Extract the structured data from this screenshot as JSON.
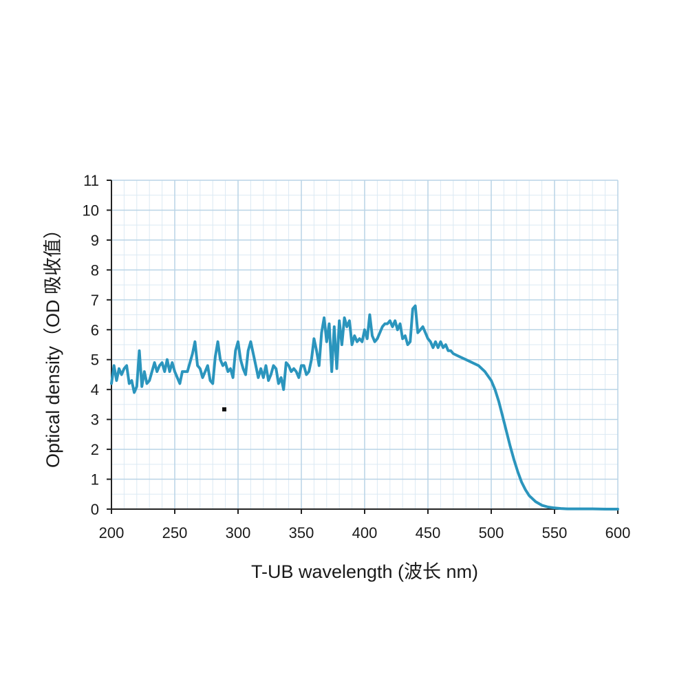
{
  "chart_data": {
    "type": "line",
    "xlabel": "T-UB wavelength (波长 nm)",
    "ylabel": "Optical density（OD 吸收值）",
    "xlim": [
      200,
      600
    ],
    "ylim": [
      0,
      11
    ],
    "x_ticks": [
      200,
      250,
      300,
      350,
      400,
      450,
      500,
      550,
      600
    ],
    "y_ticks": [
      0,
      1,
      2,
      3,
      4,
      5,
      6,
      7,
      8,
      9,
      10,
      11
    ],
    "x_tick_labels": [
      "200",
      "250",
      "300",
      "350",
      "400",
      "450",
      "500",
      "550",
      "600"
    ],
    "y_tick_labels": [
      "0",
      "1",
      "2",
      "3",
      "4",
      "5",
      "6",
      "7",
      "8",
      "9",
      "10",
      "11"
    ],
    "grid": true,
    "grid_minor": true,
    "legend": "none",
    "colors": {
      "line": "#2b95bd",
      "major_grid": "#b9d4e6",
      "minor_grid": "#dbe9f3",
      "axis": "#222222"
    },
    "series": [
      {
        "x": [
          200,
          202,
          204,
          206,
          208,
          210,
          212,
          214,
          216,
          218,
          220,
          222,
          224,
          226,
          228,
          230,
          232,
          234,
          236,
          238,
          240,
          242,
          244,
          246,
          248,
          250,
          252,
          254,
          256,
          258,
          260,
          262,
          264,
          266,
          268,
          270,
          272,
          274,
          276,
          278,
          280,
          282,
          284,
          286,
          288,
          290,
          292,
          294,
          296,
          298,
          300,
          302,
          304,
          306,
          308,
          310,
          312,
          314,
          316,
          318,
          320,
          322,
          324,
          326,
          328,
          330,
          332,
          334,
          336,
          338,
          340,
          342,
          344,
          346,
          348,
          350,
          352,
          354,
          356,
          358,
          360,
          362,
          364,
          366,
          368,
          370,
          372,
          374,
          376,
          378,
          380,
          382,
          384,
          386,
          388,
          390,
          392,
          394,
          396,
          398,
          400,
          402,
          404,
          406,
          408,
          410,
          412,
          414,
          416,
          418,
          420,
          422,
          424,
          426,
          428,
          430,
          432,
          434,
          436,
          438,
          440,
          442,
          444,
          446,
          448,
          450,
          452,
          454,
          456,
          458,
          460,
          462,
          464,
          466,
          468,
          470,
          475,
          480,
          485,
          490,
          495,
          500,
          503,
          506,
          509,
          512,
          515,
          518,
          521,
          524,
          527,
          530,
          535,
          540,
          545,
          550,
          555,
          560,
          570,
          580,
          590,
          600
        ],
        "y": [
          4.2,
          4.8,
          4.3,
          4.7,
          4.5,
          4.7,
          4.8,
          4.2,
          4.3,
          3.9,
          4.1,
          5.3,
          4.1,
          4.6,
          4.2,
          4.3,
          4.6,
          4.9,
          4.6,
          4.8,
          4.9,
          4.6,
          5.0,
          4.6,
          4.9,
          4.6,
          4.4,
          4.2,
          4.6,
          4.6,
          4.6,
          4.9,
          5.2,
          5.6,
          4.8,
          4.7,
          4.4,
          4.6,
          4.8,
          4.3,
          4.2,
          5.1,
          5.6,
          5.0,
          4.8,
          4.9,
          4.6,
          4.7,
          4.4,
          5.3,
          5.6,
          5.0,
          4.7,
          4.5,
          5.3,
          5.6,
          5.2,
          4.8,
          4.4,
          4.7,
          4.4,
          4.8,
          4.3,
          4.5,
          4.8,
          4.7,
          4.2,
          4.4,
          4.0,
          4.9,
          4.8,
          4.6,
          4.7,
          4.6,
          4.4,
          4.8,
          4.8,
          4.5,
          4.6,
          5.0,
          5.7,
          5.3,
          4.8,
          5.9,
          6.4,
          5.6,
          6.2,
          4.6,
          6.1,
          4.7,
          6.3,
          5.5,
          6.4,
          6.1,
          6.3,
          5.5,
          5.8,
          5.6,
          5.7,
          5.6,
          6.0,
          5.7,
          6.5,
          5.8,
          5.6,
          5.7,
          5.9,
          6.1,
          6.2,
          6.2,
          6.3,
          6.1,
          6.3,
          6.0,
          6.2,
          5.7,
          5.8,
          5.5,
          5.6,
          6.7,
          6.8,
          5.9,
          6.0,
          6.1,
          5.9,
          5.7,
          5.6,
          5.4,
          5.6,
          5.4,
          5.6,
          5.4,
          5.5,
          5.3,
          5.3,
          5.2,
          5.1,
          5.0,
          4.9,
          4.8,
          4.6,
          4.3,
          4.0,
          3.6,
          3.1,
          2.6,
          2.1,
          1.65,
          1.25,
          0.9,
          0.65,
          0.45,
          0.25,
          0.13,
          0.07,
          0.04,
          0.02,
          0.01,
          0.01,
          0.01,
          0.0,
          0.0
        ]
      }
    ]
  }
}
